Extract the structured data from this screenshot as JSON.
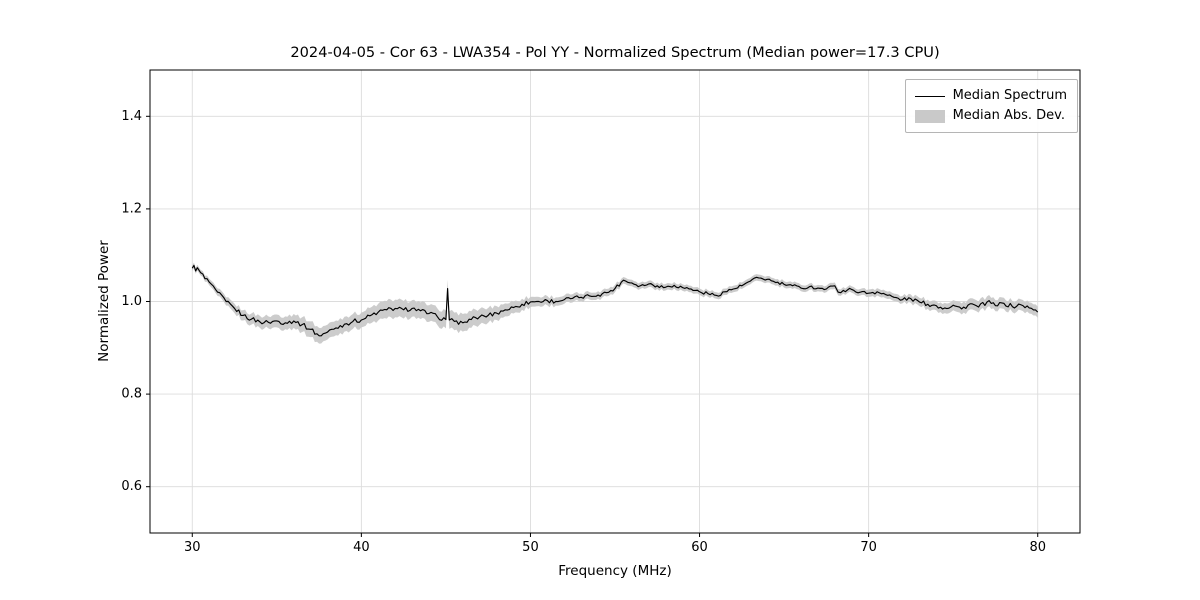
{
  "title": "2024-04-05 - Cor 63 - LWA354 - Pol YY - Normalized Spectrum (Median power=17.3 CPU)",
  "colors": {
    "line": "#000000",
    "band": "#c9c9c9",
    "grid": "#dcdcdc",
    "axis": "#000000",
    "background": "#ffffff"
  },
  "chart_data": {
    "type": "line",
    "title": "2024-04-05 - Cor 63 - LWA354 - Pol YY - Normalized Spectrum (Median power=17.3 CPU)",
    "xlabel": "Frequency (MHz)",
    "ylabel": "Normalized Power",
    "xlim": [
      27.5,
      82.5
    ],
    "ylim": [
      0.5,
      1.5
    ],
    "xticks": [
      30,
      40,
      50,
      60,
      70,
      80
    ],
    "yticks": [
      0.6,
      0.8,
      1.0,
      1.2,
      1.4
    ],
    "grid": true,
    "legend": {
      "position": "upper right",
      "entries": [
        {
          "label": "Median Spectrum",
          "type": "line",
          "color": "#000000"
        },
        {
          "label": "Median Abs. Dev.",
          "type": "patch",
          "color": "#c9c9c9"
        }
      ]
    },
    "series": [
      {
        "name": "Median Spectrum",
        "x": [
          30.0,
          30.1,
          30.2,
          30.3,
          30.5,
          31.0,
          31.5,
          32.0,
          32.5,
          33.0,
          33.5,
          34.0,
          34.5,
          35.0,
          35.5,
          36.0,
          36.5,
          37.0,
          37.5,
          38.0,
          38.5,
          39.0,
          39.5,
          40.0,
          40.5,
          41.0,
          41.5,
          42.0,
          42.5,
          43.0,
          43.5,
          44.0,
          44.5,
          45.0,
          45.1,
          45.2,
          45.5,
          46.0,
          46.5,
          47.0,
          47.5,
          48.0,
          48.5,
          49.0,
          49.5,
          50.0,
          50.5,
          51.0,
          51.5,
          52.0,
          52.5,
          53.0,
          53.5,
          54.0,
          54.5,
          55.0,
          55.5,
          56.0,
          56.5,
          57.0,
          57.5,
          58.0,
          58.5,
          59.0,
          59.5,
          60.0,
          60.5,
          61.0,
          61.5,
          62.0,
          62.5,
          63.0,
          63.5,
          64.0,
          64.5,
          65.0,
          65.5,
          66.0,
          66.5,
          67.0,
          67.5,
          68.0,
          68.2,
          68.5,
          69.0,
          69.5,
          70.0,
          70.5,
          71.0,
          71.5,
          72.0,
          72.5,
          73.0,
          73.5,
          74.0,
          74.5,
          75.0,
          75.5,
          76.0,
          76.5,
          77.0,
          77.5,
          78.0,
          78.5,
          79.0,
          79.5,
          80.0
        ],
        "y": [
          1.072,
          1.078,
          1.066,
          1.073,
          1.062,
          1.042,
          1.02,
          1.0,
          0.985,
          0.97,
          0.962,
          0.956,
          0.955,
          0.958,
          0.954,
          0.958,
          0.95,
          0.94,
          0.926,
          0.934,
          0.943,
          0.951,
          0.957,
          0.96,
          0.969,
          0.977,
          0.982,
          0.985,
          0.982,
          0.985,
          0.98,
          0.974,
          0.967,
          0.961,
          1.028,
          0.96,
          0.957,
          0.954,
          0.961,
          0.967,
          0.97,
          0.975,
          0.982,
          0.987,
          0.994,
          0.999,
          1.0,
          1.002,
          1.0,
          1.004,
          1.007,
          1.009,
          1.012,
          1.014,
          1.019,
          1.028,
          1.046,
          1.04,
          1.034,
          1.038,
          1.034,
          1.031,
          1.035,
          1.03,
          1.027,
          1.021,
          1.017,
          1.013,
          1.021,
          1.027,
          1.034,
          1.044,
          1.051,
          1.048,
          1.041,
          1.037,
          1.034,
          1.029,
          1.032,
          1.029,
          1.027,
          1.034,
          1.02,
          1.024,
          1.026,
          1.02,
          1.018,
          1.021,
          1.015,
          1.009,
          1.004,
          1.006,
          0.999,
          0.994,
          0.991,
          0.986,
          0.992,
          0.984,
          0.995,
          0.988,
          0.999,
          0.991,
          0.996,
          0.989,
          0.993,
          0.986,
          0.977
        ]
      },
      {
        "name": "Median Abs. Dev.",
        "band_halfwidth": [
          0.006,
          0.006,
          0.006,
          0.006,
          0.006,
          0.007,
          0.008,
          0.009,
          0.01,
          0.011,
          0.012,
          0.013,
          0.013,
          0.014,
          0.014,
          0.015,
          0.016,
          0.017,
          0.017,
          0.016,
          0.016,
          0.016,
          0.016,
          0.016,
          0.017,
          0.018,
          0.019,
          0.019,
          0.019,
          0.018,
          0.018,
          0.018,
          0.018,
          0.019,
          0.019,
          0.019,
          0.019,
          0.019,
          0.018,
          0.017,
          0.016,
          0.015,
          0.014,
          0.013,
          0.012,
          0.011,
          0.01,
          0.01,
          0.009,
          0.009,
          0.009,
          0.008,
          0.008,
          0.008,
          0.008,
          0.008,
          0.007,
          0.007,
          0.007,
          0.007,
          0.007,
          0.007,
          0.007,
          0.007,
          0.007,
          0.007,
          0.007,
          0.007,
          0.007,
          0.007,
          0.007,
          0.007,
          0.007,
          0.007,
          0.007,
          0.007,
          0.007,
          0.007,
          0.007,
          0.007,
          0.007,
          0.007,
          0.007,
          0.007,
          0.007,
          0.007,
          0.008,
          0.008,
          0.008,
          0.008,
          0.008,
          0.009,
          0.009,
          0.01,
          0.01,
          0.011,
          0.011,
          0.012,
          0.012,
          0.012,
          0.012,
          0.012,
          0.012,
          0.012,
          0.012,
          0.012,
          0.012
        ]
      }
    ]
  }
}
